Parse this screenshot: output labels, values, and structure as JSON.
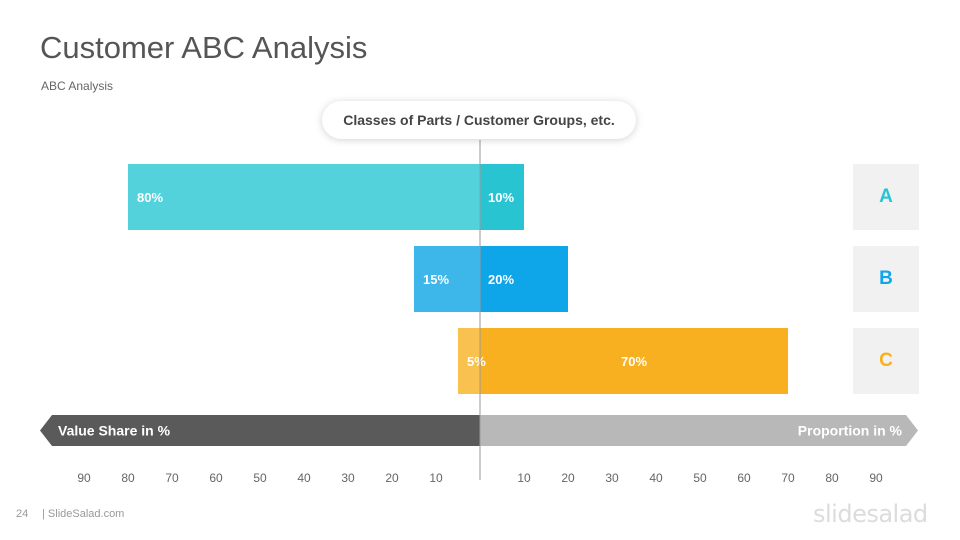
{
  "slide": {
    "title": "Customer ABC Analysis",
    "subtitle": "ABC Analysis",
    "class_label": "Classes of Parts / Customer Groups, etc.",
    "page_number": "24",
    "footer_site": "| SlideSalad.com",
    "brand_logo": "slidesalad"
  },
  "chart_data": {
    "type": "bar",
    "categories": [
      "A",
      "B",
      "C"
    ],
    "left_axis_label": "Value Share in %",
    "right_axis_label": "Proportion in %",
    "value_share": [
      80,
      15,
      5
    ],
    "proportion": [
      10,
      20,
      70
    ],
    "value_share_labels": [
      "80%",
      "15%",
      "5%"
    ],
    "proportion_labels": [
      "10%",
      "20%",
      "70%"
    ],
    "left_ticks": [
      "90",
      "80",
      "70",
      "60",
      "50",
      "40",
      "30",
      "20",
      "10"
    ],
    "right_ticks": [
      "10",
      "20",
      "30",
      "40",
      "50",
      "60",
      "70",
      "80",
      "90"
    ],
    "xlim": [
      0,
      100
    ],
    "grid": false
  },
  "colors": {
    "value_share": [
      "#54d2dc",
      "#3db6ea",
      "#f8c150"
    ],
    "proportion": [
      "#29c4d1",
      "#0ea5e9",
      "#f8b021"
    ],
    "class_text": [
      "#29c4d1",
      "#0ea5e9",
      "#f8b021"
    ],
    "left_arrow": "#5a5a5a",
    "right_arrow": "#b8b8b8"
  }
}
